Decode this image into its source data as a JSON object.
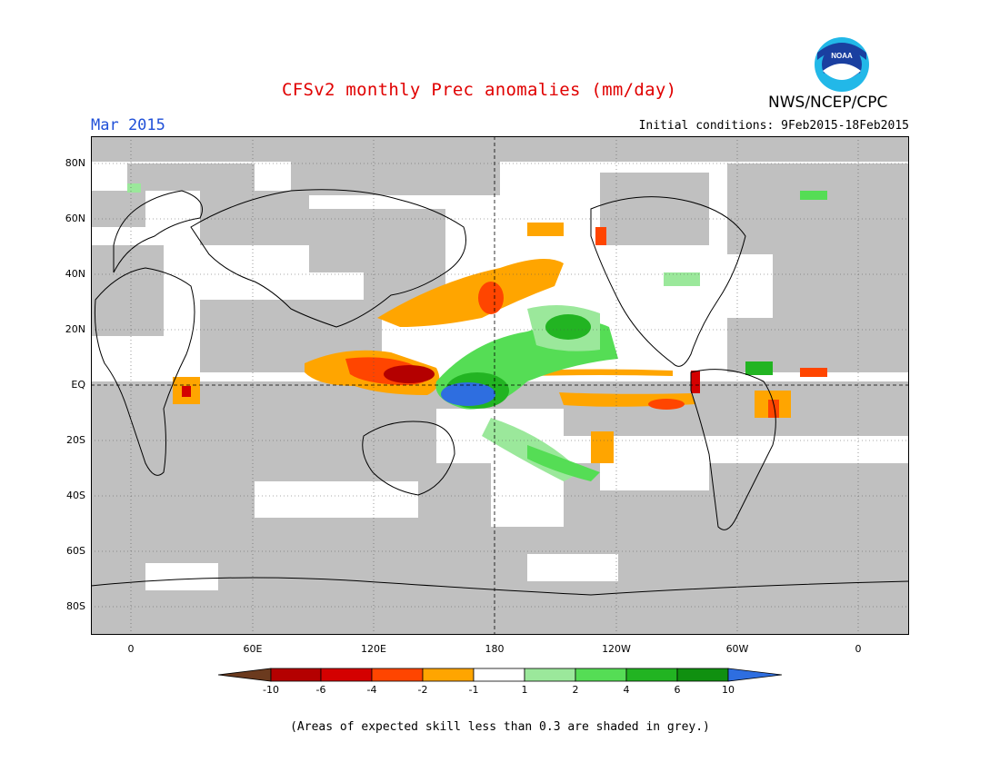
{
  "title": "CFSv2 monthly Prec anomalies (mm/day)",
  "month": "Mar 2015",
  "initial_conditions": "Initial conditions: 9Feb2015-18Feb2015",
  "agency": "NWS/NCEP/CPC",
  "logo_text": "NOAA",
  "note": "(Areas of expected skill less than 0.3 are shaded in grey.)",
  "lat_labels": [
    "80N",
    "60N",
    "40N",
    "20N",
    "EQ",
    "20S",
    "40S",
    "60S",
    "80S"
  ],
  "lon_labels": [
    "0",
    "60E",
    "120E",
    "180",
    "120W",
    "60W",
    "0"
  ],
  "colorbar": {
    "labels": [
      "-10",
      "-6",
      "-4",
      "-2",
      "-1",
      "1",
      "2",
      "4",
      "6",
      "10"
    ],
    "colors": [
      "#6b3a1e",
      "#b40000",
      "#d40000",
      "#ff4500",
      "#ffa500",
      "#ffffff",
      "#9be89b",
      "#55dd55",
      "#22b422",
      "#109010",
      "#2e6ee0"
    ]
  },
  "colors": {
    "skill_grey": "#c0c0c0",
    "title_red": "#e00000",
    "month_blue": "#2050d8"
  }
}
